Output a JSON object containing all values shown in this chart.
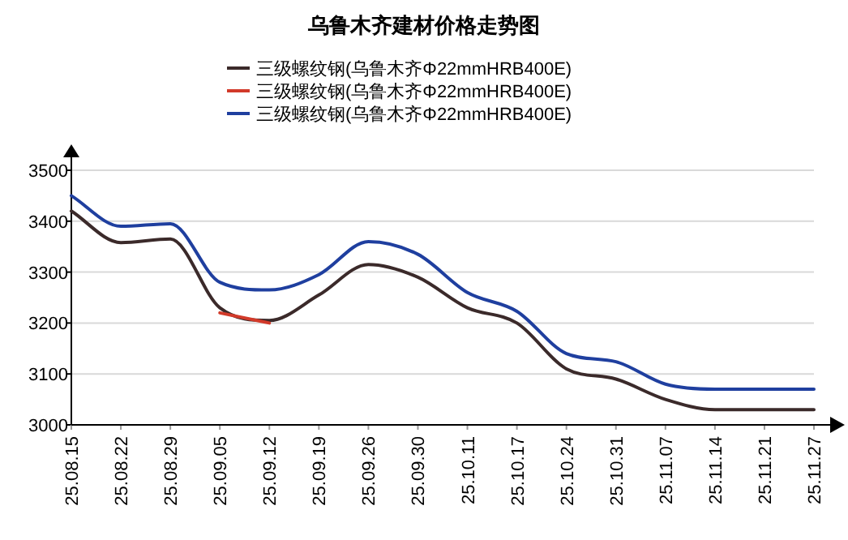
{
  "chart_data": {
    "type": "line",
    "title": "乌鲁木齐建材价格走势图",
    "categories": [
      "25.08.15",
      "25.08.22",
      "25.08.29",
      "25.09.05",
      "25.09.12",
      "25.09.19",
      "25.09.26",
      "25.09.30",
      "25.10.11",
      "25.10.17",
      "25.10.24",
      "25.10.31",
      "25.11.07",
      "25.11.14",
      "25.11.21",
      "25.11.27"
    ],
    "series": [
      {
        "name": "三级螺纹钢(乌鲁木齐Φ22mmHRB400E)",
        "color": "#3b2a2a",
        "values": [
          3420,
          3358,
          3365,
          3230,
          3205,
          3255,
          3315,
          3290,
          3230,
          3200,
          3110,
          3090,
          3050,
          3030,
          3030,
          3030
        ]
      },
      {
        "name": "三级螺纹钢(乌鲁木齐Φ22mmHRB400E)",
        "color": "#d23a2a",
        "values": [
          null,
          null,
          null,
          3220,
          3200,
          null,
          null,
          null,
          null,
          null,
          null,
          null,
          null,
          null,
          null,
          null
        ]
      },
      {
        "name": "三级螺纹钢(乌鲁木齐Φ22mmHRB400E)",
        "color": "#1f3f9f",
        "values": [
          3450,
          3390,
          3395,
          3280,
          3265,
          3295,
          3360,
          3335,
          3260,
          3223,
          3140,
          3124,
          3080,
          3070,
          3070,
          3070
        ]
      }
    ],
    "ylim": [
      3000,
      3500
    ],
    "yticks": [
      3000,
      3100,
      3200,
      3300,
      3400,
      3500
    ],
    "grid": "y",
    "legend": "top",
    "marker": "none",
    "line_style": "solid"
  }
}
